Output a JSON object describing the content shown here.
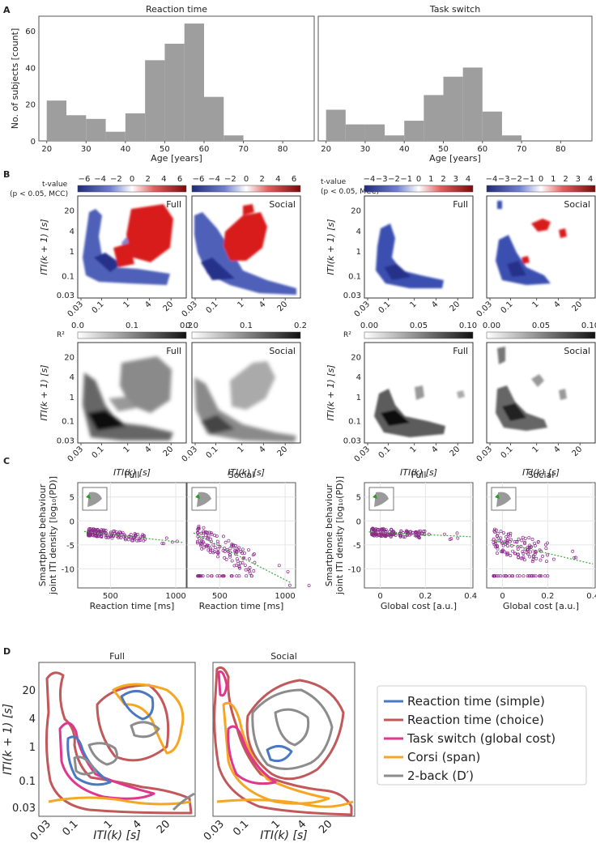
{
  "panel_labels": [
    "A",
    "B",
    "C",
    "D"
  ],
  "ticks": {
    "iti": [
      "0.03",
      "0.1",
      "1",
      "4",
      "20"
    ],
    "t_a": [
      "−6",
      "−4",
      "−2",
      "0",
      "2",
      "4",
      "6"
    ],
    "t_b": [
      "−4",
      "−3",
      "−2",
      "−1",
      "0",
      "1",
      "2",
      "3",
      "4"
    ],
    "r2_a": [
      "0.0",
      "0.1",
      "0.2"
    ],
    "r2_b": [
      "0.00",
      "0.05",
      "0.10"
    ]
  },
  "labels": {
    "iti_x": "ITI(k) [s]",
    "iti_y": "ITI(k + 1) [s]",
    "tvalue_1": "t-value",
    "tvalue_2": "(p < 0.05, MCC)",
    "r2": "R²",
    "full": "Full",
    "social": "Social",
    "c_ylabel_1": "Smartphone behaviour",
    "c_ylabel_2": "joint ITI density [log₁₀(PD)]"
  },
  "colors": {
    "bar": "#9e9e9e",
    "blue": "#3a4ba8",
    "red": "#d62020",
    "scatter": "#8b2a8b",
    "trend": "#3aa83a"
  },
  "chart_data": [
    {
      "id": "A1",
      "type": "bar",
      "title": "Reaction time",
      "xlabel": "Age [years]",
      "ylabel": "No. of subjects [count]",
      "bin_edges": [
        20,
        25,
        30,
        35,
        40,
        45,
        50,
        55,
        60,
        65,
        70,
        75,
        80,
        85
      ],
      "values": [
        22,
        14,
        12,
        5,
        15,
        44,
        53,
        64,
        24,
        3,
        0,
        0,
        0
      ],
      "xticks": [
        20,
        30,
        40,
        50,
        60,
        70,
        80
      ],
      "yticks": [
        0,
        20,
        40,
        60
      ],
      "xlim": [
        18,
        88
      ],
      "ylim": [
        0,
        68
      ]
    },
    {
      "id": "A2",
      "type": "bar",
      "title": "Task switch",
      "xlabel": "Age [years]",
      "ylabel": "",
      "bin_edges": [
        20,
        25,
        30,
        35,
        40,
        45,
        50,
        55,
        60,
        65,
        70,
        75,
        80,
        85
      ],
      "values": [
        17,
        9,
        9,
        3,
        11,
        25,
        35,
        40,
        16,
        3,
        0,
        0,
        0
      ],
      "xticks": [
        20,
        30,
        40,
        50,
        60,
        70,
        80
      ],
      "yticks": [
        0,
        20,
        40,
        60
      ],
      "xlim": [
        18,
        88
      ],
      "ylim": [
        0,
        68
      ]
    },
    {
      "id": "C1",
      "type": "scatter",
      "title": "Full",
      "xlabel": "Reaction time [ms]",
      "xticks": [
        500,
        1000
      ],
      "yticks": [
        5,
        0,
        -5,
        -10
      ],
      "xlim": [
        250,
        1080
      ],
      "ylim": [
        -14,
        8
      ],
      "trend": [
        [
          300,
          -2.2
        ],
        [
          1050,
          -4.5
        ]
      ]
    },
    {
      "id": "C2",
      "type": "scatter",
      "title": "Social",
      "xlabel": "Reaction time [ms]",
      "xticks": [
        500,
        1000
      ],
      "yticks": [
        5,
        0,
        -5,
        -10
      ],
      "xlim": [
        250,
        1080
      ],
      "ylim": [
        -14,
        8
      ],
      "trend": [
        [
          300,
          -2.5
        ],
        [
          1050,
          -13
        ]
      ]
    },
    {
      "id": "C3",
      "type": "scatter",
      "title": "Full",
      "xlabel": "Global cost [a.u.]",
      "xticks": [
        0,
        0.2,
        0.4
      ],
      "yticks": [
        5,
        0,
        -5,
        -10
      ],
      "xlim": [
        -0.07,
        0.41
      ],
      "ylim": [
        -14,
        8
      ],
      "trend": [
        [
          -0.05,
          -2.3
        ],
        [
          0.4,
          -3.3
        ]
      ]
    },
    {
      "id": "C4",
      "type": "scatter",
      "title": "Social",
      "xlabel": "Global cost [a.u.]",
      "xticks": [
        0,
        0.2,
        0.4
      ],
      "yticks": [
        5,
        0,
        -5,
        -10
      ],
      "xlim": [
        -0.07,
        0.41
      ],
      "ylim": [
        -14,
        8
      ],
      "trend": [
        [
          -0.05,
          -4
        ],
        [
          0.4,
          -9
        ]
      ]
    },
    {
      "id": "D",
      "type": "contour",
      "titles": [
        "Full",
        "Social"
      ],
      "legend": [
        {
          "name": "Reaction time (simple)",
          "color": "#4a78c2"
        },
        {
          "name": "Reaction time (choice)",
          "color": "#c2585a"
        },
        {
          "name": "Task switch (global cost)",
          "color": "#e0378e"
        },
        {
          "name": "Corsi (span)",
          "color": "#f5a623"
        },
        {
          "name": "2-back (D′)",
          "color": "#8c8c8c"
        }
      ]
    }
  ]
}
